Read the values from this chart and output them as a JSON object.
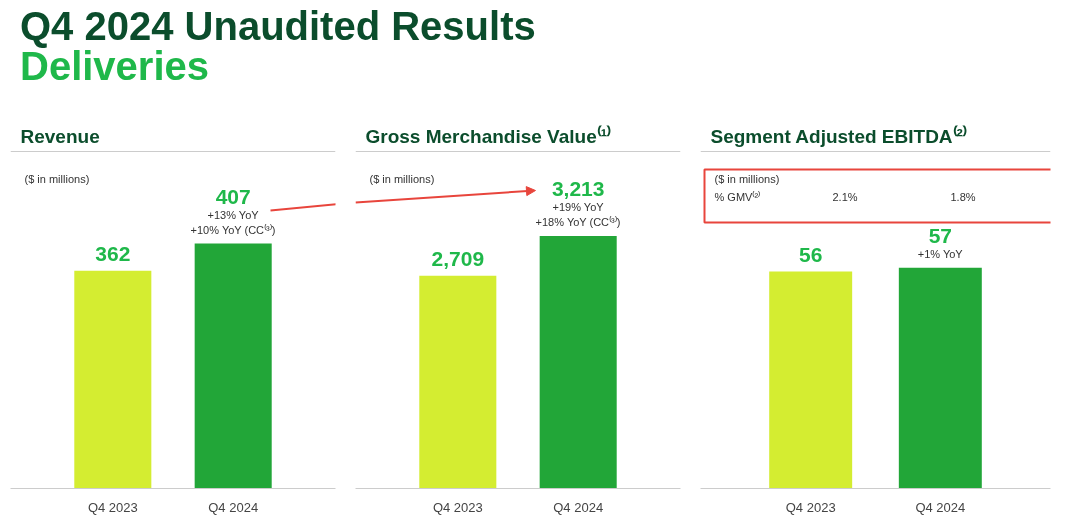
{
  "chart_data": [
    {
      "type": "other",
      "title": "Q4 2024 Unaudited Results",
      "subtitle": "Deliveries"
    },
    {
      "type": "bar",
      "title": "Revenue",
      "categories": [
        "Q4 2023",
        "Q4 2024"
      ],
      "values": [
        362,
        407
      ],
      "value_labels": [
        "362",
        "407"
      ],
      "colors": [
        "#d4ed31",
        "#22a638"
      ],
      "ylim": [
        0,
        560
      ],
      "data_labels": true,
      "annotations": [
        "($ in millions)",
        {
          "text": "+13% YoY",
          "x": "Q4 2024",
          "y": 407
        },
        {
          "text": "+10% YoY (CC⁽³⁾)",
          "x": "Q4 2024",
          "y": 407
        }
      ]
    },
    {
      "type": "bar",
      "title": "Gross Merchandise Value⁽¹⁾",
      "categories": [
        "Q4 2023",
        "Q4 2024"
      ],
      "values": [
        2709,
        3213
      ],
      "value_labels": [
        "2,709",
        "3,213"
      ],
      "colors": [
        "#d4ed31",
        "#22a638"
      ],
      "ylim": [
        0,
        4290
      ],
      "data_labels": true,
      "annotations": [
        "($ in millions)",
        {
          "text": "+19% YoY",
          "x": "Q4 2024",
          "y": 3213
        },
        {
          "text": "+18% YoY (CC⁽³⁾)",
          "x": "Q4 2024",
          "y": 3213
        }
      ]
    },
    {
      "type": "bar",
      "title": "Segment Adjusted EBITDA⁽²⁾",
      "categories": [
        "Q4 2023",
        "Q4 2024"
      ],
      "values": [
        56,
        57
      ],
      "value_labels": [
        "56",
        "57"
      ],
      "colors": [
        "#d4ed31",
        "#22a638"
      ],
      "ylim": [
        0,
        87
      ],
      "data_labels": true,
      "annotations": [
        "($ in millions)",
        "% GMV⁽²⁾",
        "2.1%",
        "1.8%",
        {
          "text": "+1% YoY",
          "x": "Q4 2024",
          "y": 57
        }
      ]
    }
  ]
}
